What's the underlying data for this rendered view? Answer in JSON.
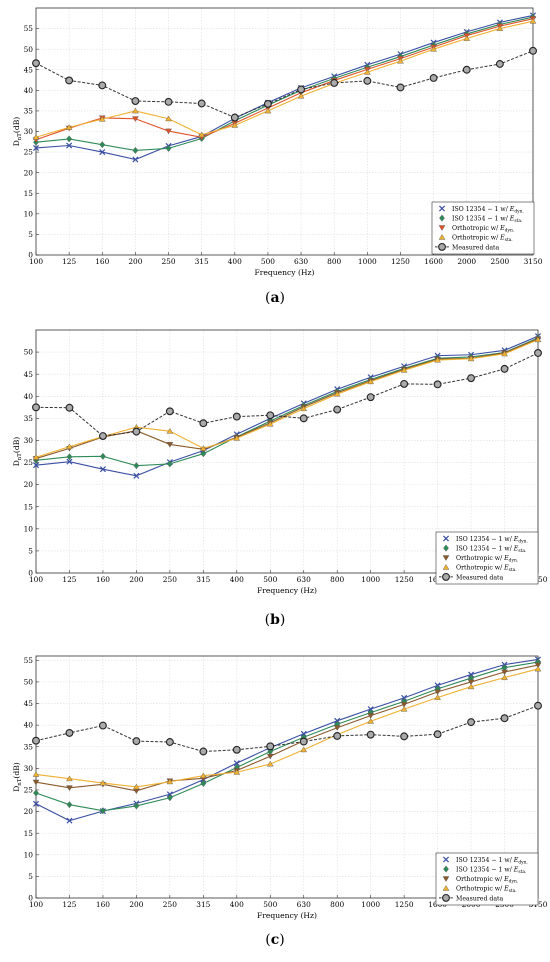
{
  "chart_data": [
    {
      "type": "line",
      "panel_label": "a",
      "xlabel": "Frequency (Hz)",
      "ylabel": "D_nT (dB)",
      "ylim": [
        0,
        60
      ],
      "yticks": [
        0,
        5,
        10,
        15,
        20,
        25,
        30,
        35,
        40,
        45,
        50,
        55
      ],
      "grid": true,
      "legend_position": "bottom-right",
      "categories": [
        "100",
        "125",
        "160",
        "200",
        "250",
        "315",
        "400",
        "500",
        "630",
        "800",
        "1000",
        "1250",
        "1600",
        "2000",
        "2500",
        "3150"
      ],
      "series": [
        {
          "name": "ISO 12354 − 1 w/ E_dyn.",
          "marker": "x",
          "color": "#3a4fa3",
          "values": [
            26.0,
            26.6,
            25.0,
            23.2,
            26.5,
            28.8,
            33.2,
            37.0,
            40.6,
            43.4,
            46.2,
            48.8,
            51.6,
            54.2,
            56.5,
            58.2
          ]
        },
        {
          "name": "ISO 12354 − 1 w/ E_sta.",
          "marker": "diamond",
          "color": "#2e8b57",
          "values": [
            27.4,
            28.2,
            26.8,
            25.4,
            25.9,
            28.3,
            32.6,
            36.4,
            40.0,
            42.9,
            45.6,
            48.2,
            51.0,
            53.7,
            56.0,
            57.8
          ]
        },
        {
          "name": "Orthotropic w/ E_dyn.",
          "marker": "triangle-down",
          "color": "#e0532a",
          "values": [
            28.0,
            30.8,
            33.3,
            33.1,
            30.1,
            28.6,
            32.0,
            35.7,
            39.4,
            42.4,
            45.1,
            47.7,
            50.5,
            53.3,
            55.6,
            57.4
          ]
        },
        {
          "name": "Orthotropic w/ E_sta.",
          "marker": "triangle-up",
          "color": "#f0b030",
          "values": [
            28.6,
            31.0,
            33.0,
            35.0,
            33.1,
            29.2,
            31.5,
            35.0,
            38.6,
            41.7,
            44.4,
            47.1,
            50.0,
            52.6,
            55.0,
            56.8
          ]
        },
        {
          "name": "Measured data",
          "marker": "circle",
          "color": "#333333",
          "dashed": true,
          "values": [
            46.6,
            42.4,
            41.2,
            37.4,
            37.2,
            36.8,
            33.4,
            36.7,
            40.2,
            41.8,
            42.3,
            40.7,
            43.0,
            45.0,
            46.4,
            49.6
          ]
        }
      ]
    },
    {
      "type": "line",
      "panel_label": "b",
      "xlabel": "Frequency (Hz)",
      "ylabel": "D_nT (dB)",
      "ylim": [
        0,
        55
      ],
      "yticks": [
        0,
        5,
        10,
        15,
        20,
        25,
        30,
        35,
        40,
        45,
        50
      ],
      "grid": true,
      "legend_position": "bottom-right",
      "categories": [
        "100",
        "125",
        "160",
        "200",
        "250",
        "315",
        "400",
        "500",
        "630",
        "800",
        "1000",
        "1250",
        "1600",
        "2000",
        "2500",
        "3150"
      ],
      "series": [
        {
          "name": "ISO 12354 − 1 w/ E_dyn.",
          "marker": "x",
          "color": "#3a4fa3",
          "values": [
            24.4,
            25.2,
            23.5,
            22.0,
            25.1,
            27.7,
            31.4,
            35.0,
            38.4,
            41.6,
            44.3,
            46.8,
            49.2,
            49.4,
            50.4,
            53.6
          ]
        },
        {
          "name": "ISO 12354 − 1 w/ E_sta.",
          "marker": "diamond",
          "color": "#2e8b57",
          "values": [
            25.5,
            26.3,
            26.4,
            24.3,
            24.7,
            27.0,
            30.8,
            34.4,
            37.9,
            41.1,
            43.8,
            46.3,
            48.6,
            48.9,
            49.9,
            53.2
          ]
        },
        {
          "name": "Orthotropic w/ E_dyn.",
          "marker": "triangle-down",
          "color": "#8b5a2b",
          "values": [
            25.9,
            28.2,
            30.8,
            32.2,
            29.1,
            28.0,
            30.7,
            34.0,
            37.6,
            40.8,
            43.5,
            46.1,
            48.4,
            48.6,
            49.8,
            53.0
          ]
        },
        {
          "name": "Orthotropic w/ E_sta.",
          "marker": "triangle-up",
          "color": "#f0b030",
          "values": [
            26.2,
            28.6,
            30.9,
            33.0,
            32.1,
            28.2,
            30.5,
            33.7,
            37.2,
            40.5,
            43.3,
            45.9,
            48.2,
            48.5,
            49.6,
            52.8
          ]
        },
        {
          "name": "Measured data",
          "marker": "circle",
          "color": "#333333",
          "dashed": true,
          "values": [
            37.5,
            37.4,
            31.0,
            32.0,
            36.6,
            33.9,
            35.4,
            35.7,
            35.0,
            37.0,
            39.8,
            42.8,
            42.7,
            44.1,
            46.2,
            49.8
          ]
        }
      ]
    },
    {
      "type": "line",
      "panel_label": "c",
      "xlabel": "Frequency (Hz)",
      "ylabel": "D_nT (dB)",
      "ylim": [
        0,
        56
      ],
      "yticks": [
        0,
        5,
        10,
        15,
        20,
        25,
        30,
        35,
        40,
        45,
        50,
        55
      ],
      "grid": true,
      "legend_position": "bottom-right",
      "categories": [
        "100",
        "125",
        "160",
        "200",
        "250",
        "315",
        "400",
        "500",
        "630",
        "800",
        "1000",
        "1250",
        "1600",
        "2000",
        "2500",
        "3150"
      ],
      "series": [
        {
          "name": "ISO 12354 − 1 w/ E_dyn.",
          "marker": "x",
          "color": "#3a4fa3",
          "values": [
            21.8,
            17.9,
            20.1,
            21.9,
            24.0,
            27.4,
            31.2,
            34.8,
            38.0,
            41.0,
            43.7,
            46.3,
            49.2,
            51.7,
            54.0,
            55.2
          ]
        },
        {
          "name": "ISO 12354 − 1 w/ E_sta.",
          "marker": "diamond",
          "color": "#2e8b57",
          "values": [
            24.3,
            21.6,
            20.2,
            21.3,
            23.2,
            26.5,
            30.2,
            33.9,
            37.2,
            40.2,
            42.9,
            45.5,
            48.4,
            50.9,
            53.3,
            54.6
          ]
        },
        {
          "name": "Orthotropic w/ E_dyn.",
          "marker": "triangle-down",
          "color": "#8b5a2b",
          "values": [
            26.8,
            25.5,
            26.3,
            24.8,
            27.1,
            27.7,
            29.5,
            32.8,
            36.4,
            39.4,
            42.2,
            44.8,
            47.7,
            50.0,
            52.3,
            53.9
          ]
        },
        {
          "name": "Orthotropic w/ E_sta.",
          "marker": "triangle-up",
          "color": "#f0b030",
          "values": [
            28.6,
            27.6,
            26.6,
            25.7,
            26.9,
            28.3,
            29.1,
            31.0,
            34.3,
            37.8,
            40.9,
            43.7,
            46.4,
            48.9,
            51.0,
            53.0
          ]
        },
        {
          "name": "Measured data",
          "marker": "circle",
          "color": "#333333",
          "dashed": true,
          "values": [
            36.4,
            38.2,
            39.9,
            36.3,
            36.1,
            33.9,
            34.3,
            35.1,
            36.2,
            37.5,
            37.8,
            37.4,
            37.9,
            40.7,
            41.6,
            44.5
          ]
        }
      ]
    }
  ]
}
